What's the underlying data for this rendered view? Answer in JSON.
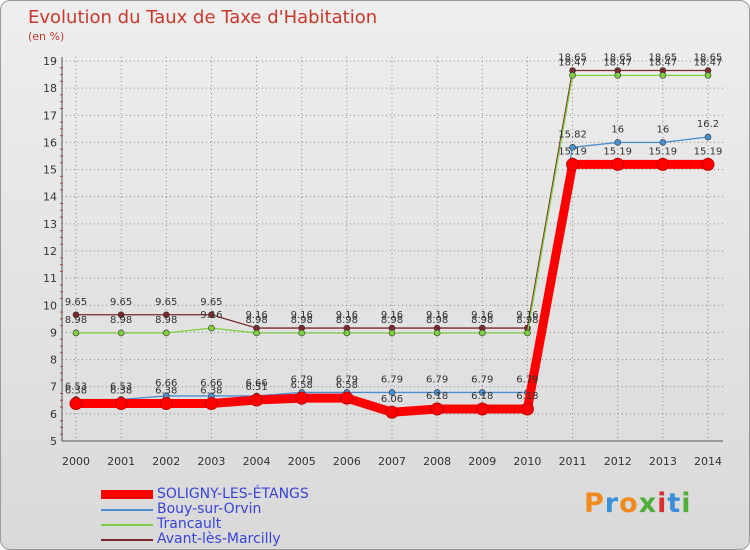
{
  "title": "Evolution du Taux de Taxe d'Habitation",
  "subtitle": "(en %)",
  "logo": "Proxiti",
  "chart_data": {
    "type": "line",
    "title": "Evolution du Taux de Taxe d'Habitation",
    "ylabel": "(en %)",
    "xlabel": "",
    "x": [
      2000,
      2001,
      2002,
      2003,
      2004,
      2005,
      2006,
      2007,
      2008,
      2009,
      2010,
      2011,
      2012,
      2013,
      2014
    ],
    "ylim": [
      5,
      19
    ],
    "yticks": [
      5,
      6,
      7,
      8,
      9,
      10,
      11,
      12,
      13,
      14,
      15,
      16,
      17,
      18,
      19
    ],
    "grid": true,
    "legend_position": "bottom-left",
    "series": [
      {
        "name": "SOLIGNY-LES-ÉTANGS",
        "color": "#ff0000",
        "values": [
          6.38,
          6.38,
          6.38,
          6.38,
          6.51,
          6.58,
          6.58,
          6.06,
          6.18,
          6.18,
          6.18,
          15.19,
          15.19,
          15.19,
          15.19
        ],
        "labels": [
          "6.38",
          "6.38",
          "6.38",
          "6.38",
          "6.51",
          "6.58",
          "6.58",
          "6.06",
          "6.18",
          "6.18",
          "6.18",
          "15.19",
          "15.19",
          "15.19",
          "15.19"
        ]
      },
      {
        "name": "Bouy-sur-Orvin",
        "color": "#4a90d0",
        "values": [
          6.53,
          6.53,
          6.66,
          6.66,
          6.66,
          6.79,
          6.79,
          6.79,
          6.79,
          6.79,
          6.79,
          15.82,
          16,
          16,
          16.2
        ],
        "labels": [
          "6.53",
          "6.53",
          "6.66",
          "6.66",
          "6.66",
          "6.79",
          "6.79",
          "6.79",
          "6.79",
          "6.79",
          "6.79",
          "15.82",
          "16",
          "16",
          "16.2"
        ]
      },
      {
        "name": "Trancault",
        "color": "#7fd040",
        "values": [
          8.98,
          8.98,
          8.98,
          9.16,
          8.98,
          8.98,
          8.98,
          8.98,
          8.98,
          8.98,
          8.98,
          18.47,
          18.47,
          18.47,
          18.47
        ],
        "labels": [
          "8.98",
          "8.98",
          "8.98",
          "9.16",
          "8.98",
          "8.98",
          "8.98",
          "8.98",
          "8.98",
          "8.98",
          "8.98",
          "18.47",
          "18.47",
          "18.47",
          "18.47"
        ]
      },
      {
        "name": "Avant-lès-Marcilly",
        "color": "#7a2a2a",
        "values": [
          9.65,
          9.65,
          9.65,
          9.65,
          9.16,
          9.16,
          9.16,
          9.16,
          9.16,
          9.16,
          9.16,
          18.65,
          18.65,
          18.65,
          18.65
        ],
        "labels": [
          "9.65",
          "9.65",
          "9.65",
          "9.65",
          "9.16",
          "9.16",
          "9.16",
          "9.16",
          "9.16",
          "9.16",
          "9.16",
          "18.65",
          "18.65",
          "18.65",
          "18.65"
        ]
      }
    ]
  }
}
